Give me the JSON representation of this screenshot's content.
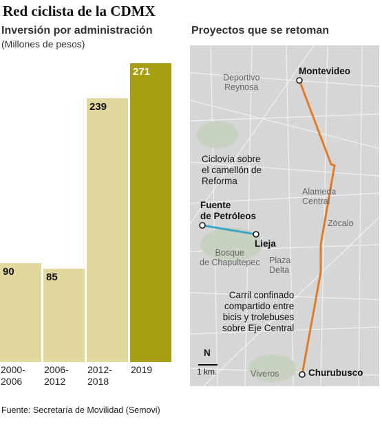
{
  "title": "Red ciclista de la CDMX",
  "subtitle": "Inversión por administración",
  "unit": "(Millones de pesos)",
  "chart_data": {
    "type": "bar",
    "categories": [
      "2000-\n2006",
      "2006-\n2012",
      "2012-\n2018",
      "2019"
    ],
    "values": [
      90,
      85,
      239,
      271
    ],
    "colors": [
      "#e0d89c",
      "#e0d89c",
      "#e0d89c",
      "#a89e12"
    ]
  },
  "map": {
    "title": "Proyectos que se retoman",
    "labels": [
      "Montevideo",
      "Deportivo\nReynosa",
      "Ciclovía sobre\nel camellón de\nReforma",
      "Fuente\nde Petróleos",
      "Lieja",
      "Alameda\nCentral",
      "Zócalo",
      "Bosque\nde Chapultepec",
      "Plaza\nDelta",
      "Carril confinado\ncompartido entre\nbicis y trolebuses\nsobre Eje Central",
      "Churubusco",
      "Viveros",
      "N",
      "1 km."
    ]
  },
  "source": "Fuente: Secretaría de Movilidad (Semovi)"
}
